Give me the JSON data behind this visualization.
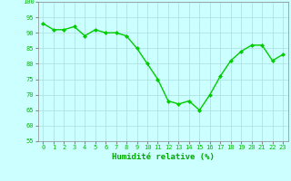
{
  "x": [
    0,
    1,
    2,
    3,
    4,
    5,
    6,
    7,
    8,
    9,
    10,
    11,
    12,
    13,
    14,
    15,
    16,
    17,
    18,
    19,
    20,
    21,
    22,
    23
  ],
  "y": [
    93,
    91,
    91,
    92,
    89,
    91,
    90,
    90,
    89,
    85,
    80,
    75,
    68,
    67,
    68,
    65,
    70,
    76,
    81,
    84,
    86,
    86,
    81,
    83
  ],
  "ylim": [
    55,
    100
  ],
  "xlim": [
    -0.5,
    23.5
  ],
  "yticks": [
    55,
    60,
    65,
    70,
    75,
    80,
    85,
    90,
    95,
    100
  ],
  "xticks": [
    0,
    1,
    2,
    3,
    4,
    5,
    6,
    7,
    8,
    9,
    10,
    11,
    12,
    13,
    14,
    15,
    16,
    17,
    18,
    19,
    20,
    21,
    22,
    23
  ],
  "xlabel": "Humidité relative (%)",
  "line_color": "#00cc00",
  "marker_color": "#00cc00",
  "bg_color": "#ccffff",
  "grid_color": "#aadddd",
  "tick_label_color": "#00bb00",
  "xlabel_color": "#00aa00",
  "tick_fontsize": 5.0,
  "xlabel_fontsize": 6.5
}
